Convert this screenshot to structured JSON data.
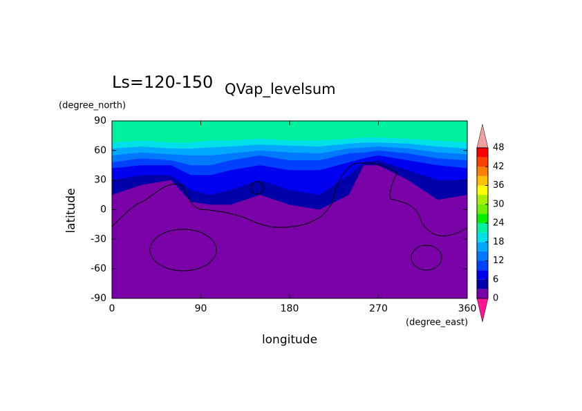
{
  "chart_data": {
    "type": "contour",
    "title": "Ls=120-150",
    "subtitle": "QVap_levelsum",
    "xlabel": "longitude",
    "xunit": "(degree_east)",
    "ylabel": "latitude",
    "yunit": "(degree_north)",
    "xlim": [
      0,
      360
    ],
    "xticks": [
      0,
      90,
      180,
      270,
      360
    ],
    "ylim": [
      -90,
      90
    ],
    "yticks": [
      -90,
      -60,
      -30,
      0,
      30,
      60,
      90
    ],
    "levels": [
      0,
      3,
      6,
      9,
      12,
      15,
      18,
      21,
      24,
      27,
      30,
      33,
      36,
      39,
      42,
      45,
      48
    ],
    "colors": [
      "#7a00a8",
      "#0000a8",
      "#0000f0",
      "#0040ff",
      "#0078ff",
      "#00a8ff",
      "#00e0e8",
      "#00f0a0",
      "#00f000",
      "#70f000",
      "#a8f000",
      "#ffff00",
      "#ffc000",
      "#ff8000",
      "#ff4000",
      "#ff0000"
    ],
    "over_color": "#f0a0a0",
    "under_color": "#ff1493",
    "cticks": [
      0,
      6,
      12,
      18,
      24,
      30,
      36,
      42,
      48
    ],
    "x": [
      0,
      30,
      60,
      80,
      100,
      120,
      150,
      180,
      210,
      240,
      255,
      270,
      300,
      330,
      360
    ],
    "boundaries": [
      {
        "level": 3,
        "lat": [
          15,
          25,
          30,
          8,
          5,
          5,
          15,
          5,
          0,
          15,
          45,
          45,
          30,
          10,
          15
        ]
      },
      {
        "level": 6,
        "lat": [
          30,
          35,
          35,
          20,
          15,
          20,
          30,
          20,
          15,
          35,
          48,
          50,
          40,
          30,
          30
        ]
      },
      {
        "level": 9,
        "lat": [
          42,
          45,
          45,
          35,
          35,
          40,
          45,
          40,
          40,
          48,
          52,
          55,
          50,
          45,
          42
        ]
      },
      {
        "level": 12,
        "lat": [
          48,
          52,
          50,
          45,
          45,
          50,
          55,
          50,
          50,
          57,
          58,
          60,
          57,
          52,
          50
        ]
      },
      {
        "level": 15,
        "lat": [
          55,
          58,
          56,
          55,
          55,
          57,
          60,
          58,
          57,
          62,
          63,
          64,
          62,
          58,
          56
        ]
      },
      {
        "level": 18,
        "lat": [
          62,
          64,
          62,
          62,
          63,
          64,
          66,
          65,
          64,
          67,
          68,
          68,
          67,
          64,
          62
        ]
      },
      {
        "level": 21,
        "lat": [
          68,
          70,
          68,
          68,
          70,
          70,
          72,
          70,
          70,
          72,
          73,
          73,
          72,
          70,
          68
        ]
      }
    ]
  }
}
